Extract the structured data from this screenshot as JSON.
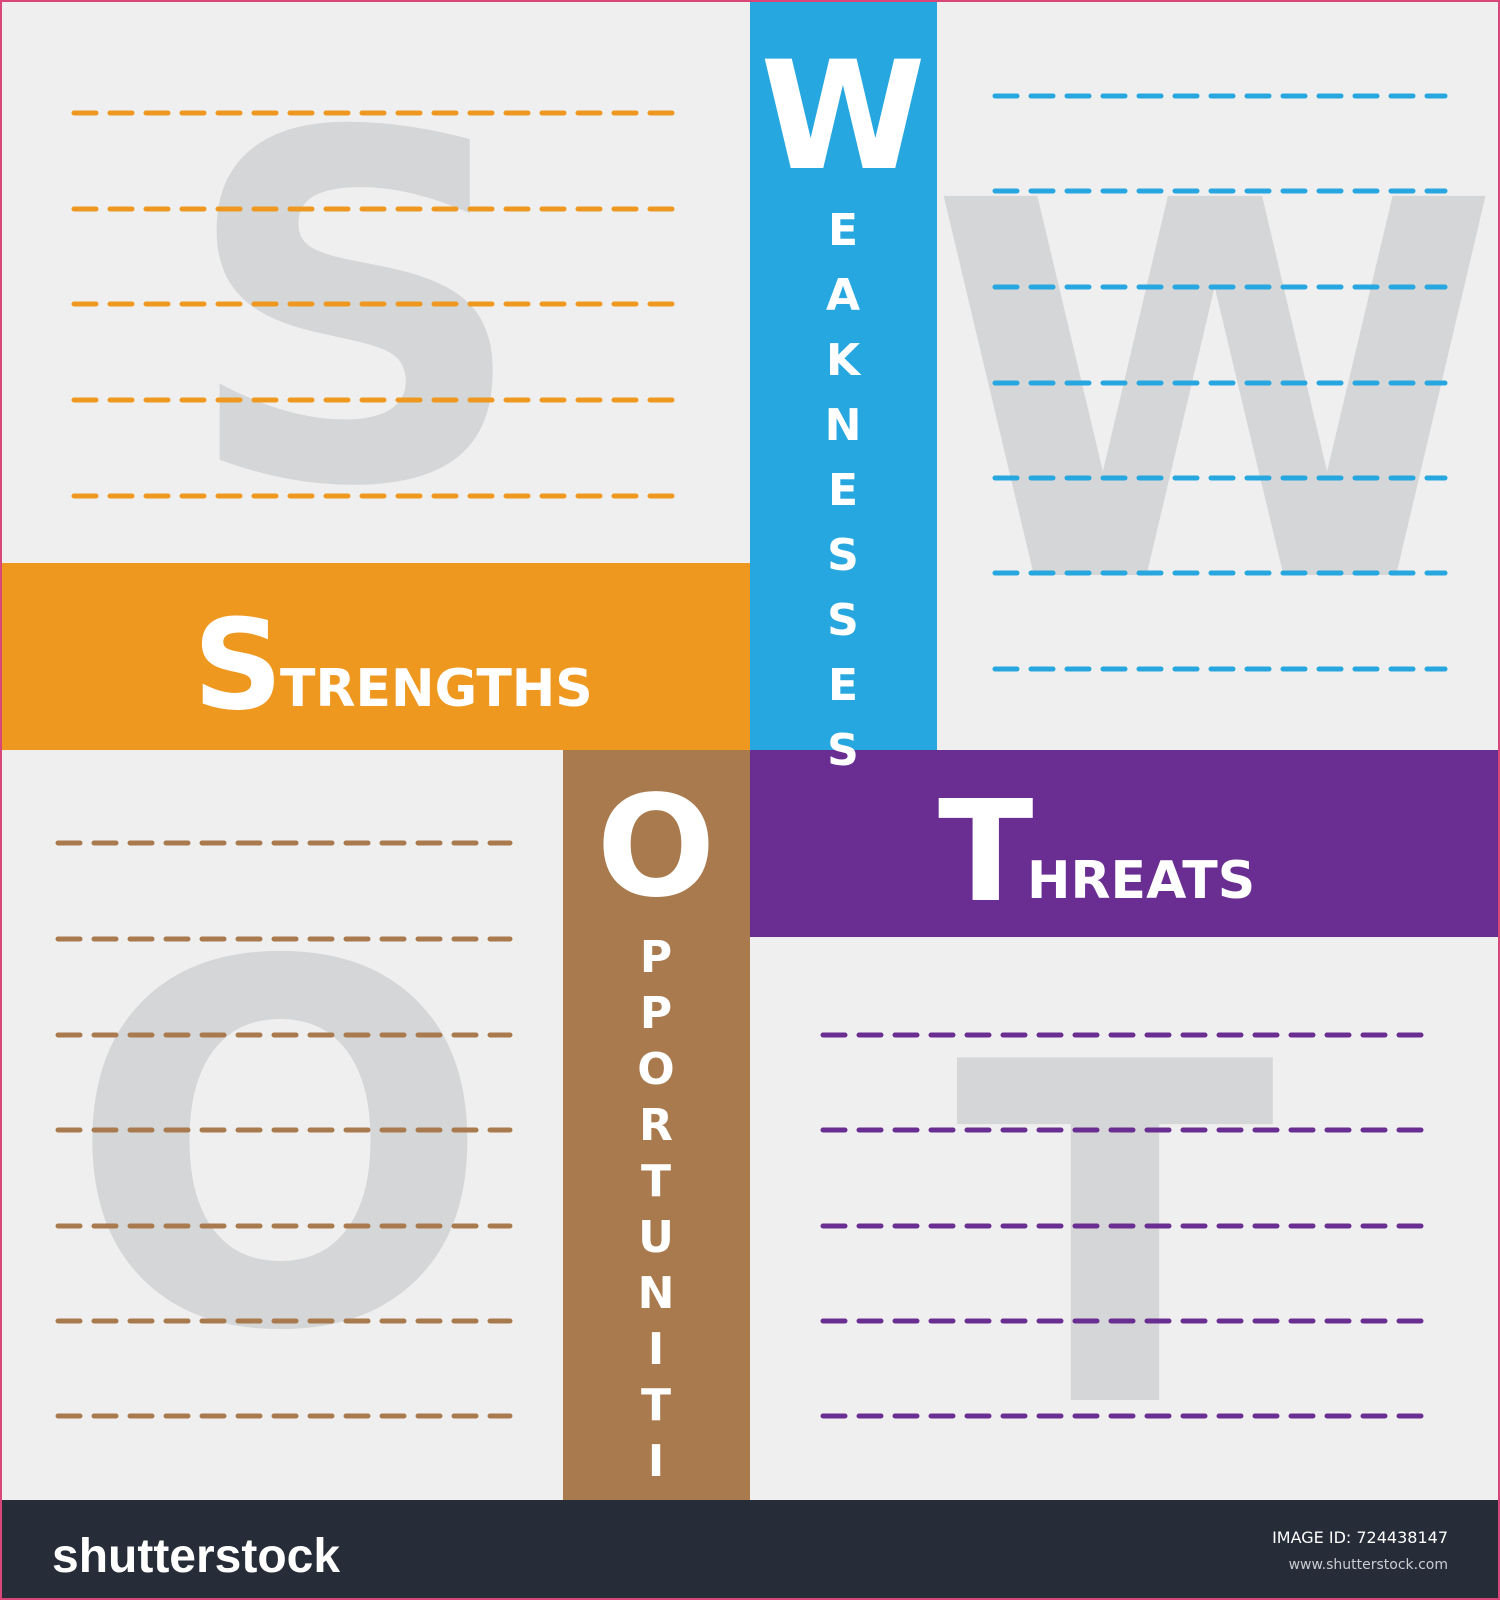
{
  "quadrants": [
    {
      "letter": "S",
      "rest": "TRENGTHS",
      "color": "#ee9820"
    },
    {
      "letter": "W",
      "rest": "EAKNESSES",
      "color": "#27a7e0"
    },
    {
      "letter": "O",
      "rest": "PPORTUNITIES",
      "color": "#a97a4e"
    },
    {
      "letter": "T",
      "rest": "HREATS",
      "color": "#6a2d92"
    }
  ],
  "footer": {
    "brand": "shutterstock",
    "image_id": "IMAGE ID: 724438147",
    "url": "www.shutterstock.com"
  }
}
